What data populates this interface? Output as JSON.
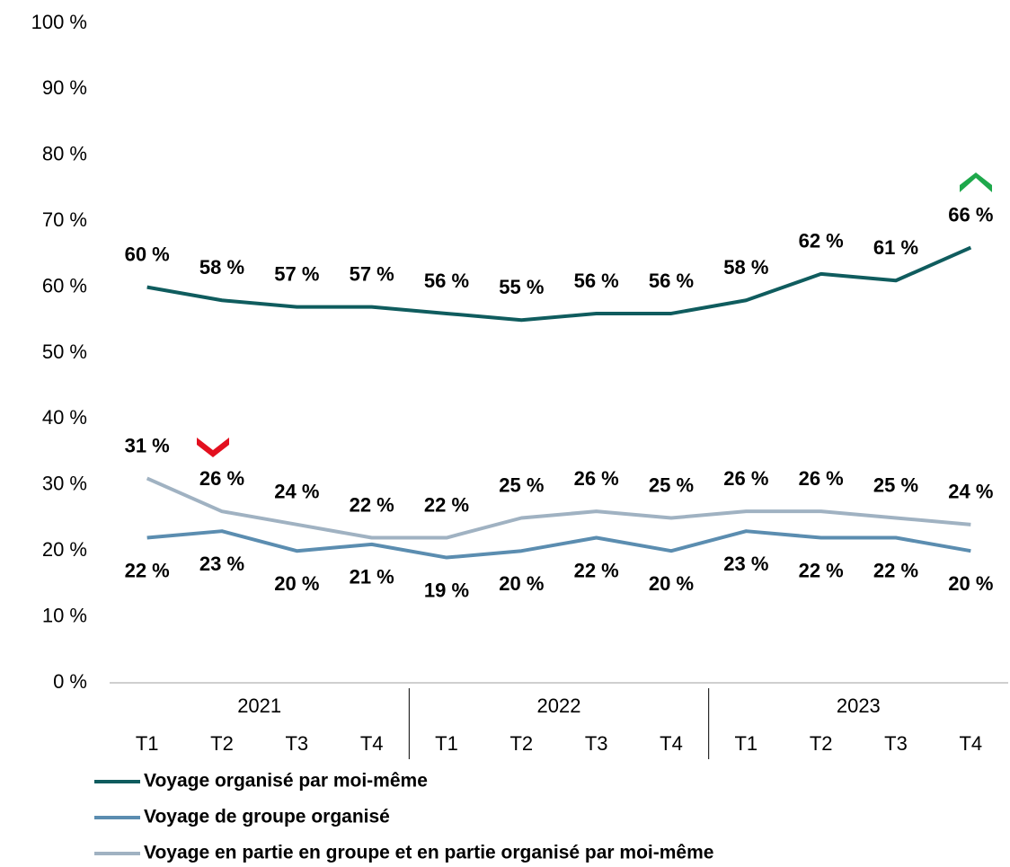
{
  "chart_data": {
    "type": "line",
    "categories": [
      "T1",
      "T2",
      "T3",
      "T4",
      "T1",
      "T2",
      "T3",
      "T4",
      "T1",
      "T2",
      "T3",
      "T4"
    ],
    "years": [
      "2021",
      "2022",
      "2023"
    ],
    "ylim": [
      0,
      100
    ],
    "yticks": [
      {
        "value": 0,
        "label": "0 %"
      },
      {
        "value": 10,
        "label": "10 %"
      },
      {
        "value": 20,
        "label": "20 %"
      },
      {
        "value": 30,
        "label": "30 %"
      },
      {
        "value": 40,
        "label": "40 %"
      },
      {
        "value": 50,
        "label": "50 %"
      },
      {
        "value": 60,
        "label": "60 %"
      },
      {
        "value": 70,
        "label": "70 %"
      },
      {
        "value": 80,
        "label": "80 %"
      },
      {
        "value": 90,
        "label": "90 %"
      },
      {
        "value": 100,
        "label": "100 %"
      }
    ],
    "series": [
      {
        "name": "Voyage organisé par moi-même",
        "color": "#0f5c5e",
        "label_side": "above",
        "values": [
          60,
          58,
          57,
          57,
          56,
          55,
          56,
          56,
          58,
          62,
          61,
          66
        ],
        "value_labels": [
          "60 %",
          "58 %",
          "57 %",
          "57 %",
          "56 %",
          "55 %",
          "56 %",
          "56 %",
          "58 %",
          "62 %",
          "61 %",
          "66 %"
        ]
      },
      {
        "name": "Voyage de groupe organisé",
        "color": "#5b8db0",
        "label_side": "below",
        "values": [
          22,
          23,
          20,
          21,
          19,
          20,
          22,
          20,
          23,
          22,
          22,
          20
        ],
        "value_labels": [
          "22 %",
          "23 %",
          "20 %",
          "21 %",
          "19 %",
          "20 %",
          "22 %",
          "20 %",
          "23 %",
          "22 %",
          "22 %",
          "20 %"
        ]
      },
      {
        "name": "Voyage en partie en groupe et en partie organisé par moi-même",
        "color": "#a0b2c2",
        "label_side": "above",
        "values": [
          31,
          26,
          24,
          22,
          22,
          25,
          26,
          25,
          26,
          26,
          25,
          24
        ],
        "value_labels": [
          "31 %",
          "26 %",
          "24 %",
          "22 %",
          "22 %",
          "25 %",
          "26 %",
          "25 %",
          "26 %",
          "26 %",
          "25 %",
          "24 %"
        ]
      }
    ]
  }
}
